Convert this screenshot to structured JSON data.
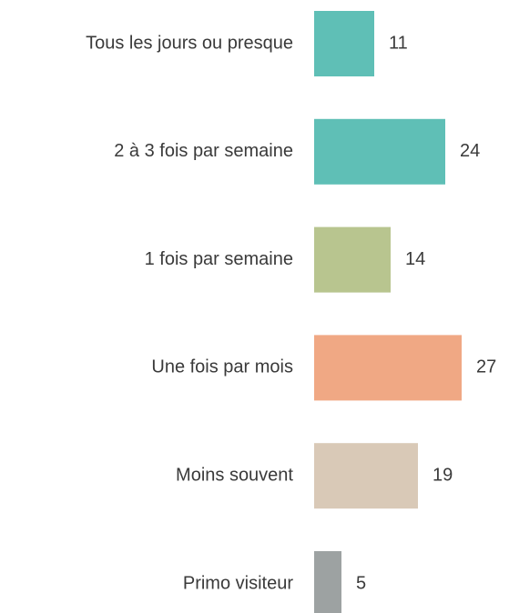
{
  "chart_data": {
    "type": "barh",
    "categories": [
      "Tous les jours ou presque",
      "2 à 3 fois par semaine",
      "1 fois par semaine",
      "Une fois par mois",
      "Moins souvent",
      "Primo visiteur"
    ],
    "values": [
      11,
      24,
      14,
      27,
      19,
      5
    ],
    "colors": [
      "#5fbfb6",
      "#5fbfb6",
      "#b8c58f",
      "#f0a884",
      "#d9c9b7",
      "#9da2a2"
    ]
  }
}
